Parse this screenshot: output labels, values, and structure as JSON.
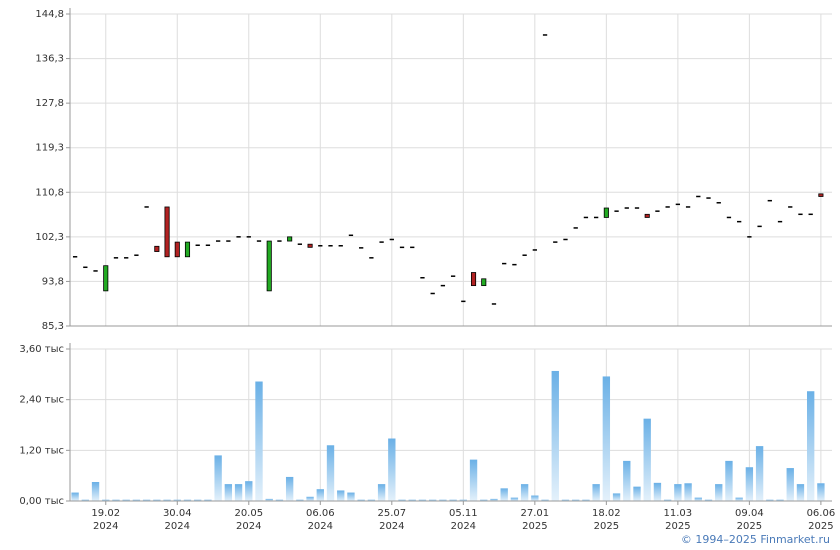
{
  "copyright": "© 1994–2025 Finmarket.ru",
  "chart_data": [
    {
      "type": "candlestick",
      "y_ticks": [
        "144,8",
        "136,3",
        "127,8",
        "119,3",
        "110,8",
        "102,3",
        "93,8",
        "85,3"
      ],
      "y_tick_values": [
        144.8,
        136.3,
        127.8,
        119.3,
        110.8,
        102.3,
        93.8,
        85.3
      ],
      "ylim": [
        85.3,
        144.8
      ],
      "grid": true,
      "colors": {
        "up": "#22aa22",
        "down": "#b22222",
        "flat": "#000000"
      },
      "candles": [
        {
          "open": 98.5,
          "close": 98.5
        },
        {
          "open": 96.5,
          "close": 96.5
        },
        {
          "open": 95.8,
          "close": 95.8
        },
        {
          "open": 92.0,
          "close": 96.8
        },
        {
          "open": 98.3,
          "close": 98.3
        },
        {
          "open": 98.3,
          "close": 98.3
        },
        {
          "open": 98.8,
          "close": 98.8
        },
        {
          "open": 108.0,
          "close": 108.0
        },
        {
          "open": 100.5,
          "close": 99.5
        },
        {
          "open": 108.0,
          "close": 98.5
        },
        {
          "open": 101.3,
          "close": 98.5
        },
        {
          "open": 98.5,
          "close": 101.3
        },
        {
          "open": 100.7,
          "close": 100.7
        },
        {
          "open": 100.7,
          "close": 100.7
        },
        {
          "open": 101.5,
          "close": 101.5
        },
        {
          "open": 101.5,
          "close": 101.5
        },
        {
          "open": 102.3,
          "close": 102.3
        },
        {
          "open": 102.3,
          "close": 102.3
        },
        {
          "open": 101.5,
          "close": 101.5
        },
        {
          "open": 92.0,
          "close": 101.5
        },
        {
          "open": 101.5,
          "close": 101.5
        },
        {
          "open": 101.5,
          "close": 102.3
        },
        {
          "open": 100.9,
          "close": 100.9
        },
        {
          "open": 100.9,
          "close": 100.3
        },
        {
          "open": 100.6,
          "close": 100.6
        },
        {
          "open": 100.6,
          "close": 100.6
        },
        {
          "open": 100.6,
          "close": 100.6
        },
        {
          "open": 102.6,
          "close": 102.6
        },
        {
          "open": 100.2,
          "close": 100.2
        },
        {
          "open": 98.3,
          "close": 98.3
        },
        {
          "open": 101.3,
          "close": 101.3
        },
        {
          "open": 101.8,
          "close": 101.8
        },
        {
          "open": 100.3,
          "close": 100.3
        },
        {
          "open": 100.3,
          "close": 100.3
        },
        {
          "open": 94.5,
          "close": 94.5
        },
        {
          "open": 91.5,
          "close": 91.5
        },
        {
          "open": 93.0,
          "close": 93.0
        },
        {
          "open": 94.8,
          "close": 94.8
        },
        {
          "open": 90.0,
          "close": 90.0
        },
        {
          "open": 95.5,
          "close": 93.0
        },
        {
          "open": 93.0,
          "close": 94.3
        },
        {
          "open": 89.5,
          "close": 89.5
        },
        {
          "open": 97.2,
          "close": 97.2
        },
        {
          "open": 97.0,
          "close": 97.0
        },
        {
          "open": 98.8,
          "close": 98.8
        },
        {
          "open": 99.8,
          "close": 99.8
        },
        {
          "open": 140.8,
          "close": 140.8
        },
        {
          "open": 101.3,
          "close": 101.3
        },
        {
          "open": 101.8,
          "close": 101.8
        },
        {
          "open": 104.0,
          "close": 104.0
        },
        {
          "open": 106.0,
          "close": 106.0
        },
        {
          "open": 106.0,
          "close": 106.0
        },
        {
          "open": 106.0,
          "close": 107.8
        },
        {
          "open": 107.2,
          "close": 107.2
        },
        {
          "open": 107.8,
          "close": 107.8
        },
        {
          "open": 107.8,
          "close": 107.8
        },
        {
          "open": 106.6,
          "close": 106.0
        },
        {
          "open": 107.2,
          "close": 107.2
        },
        {
          "open": 108.0,
          "close": 108.0
        },
        {
          "open": 108.5,
          "close": 108.5
        },
        {
          "open": 108.2,
          "close": 108.0
        },
        {
          "open": 110.0,
          "close": 110.0
        },
        {
          "open": 109.7,
          "close": 109.7
        },
        {
          "open": 108.8,
          "close": 108.8
        },
        {
          "open": 106.0,
          "close": 106.0
        },
        {
          "open": 105.2,
          "close": 105.2
        },
        {
          "open": 102.3,
          "close": 102.3
        },
        {
          "open": 104.3,
          "close": 104.3
        },
        {
          "open": 109.2,
          "close": 109.2
        },
        {
          "open": 105.2,
          "close": 105.2
        },
        {
          "open": 108.0,
          "close": 108.0
        },
        {
          "open": 106.6,
          "close": 106.6
        },
        {
          "open": 106.6,
          "close": 106.6
        },
        {
          "open": 110.5,
          "close": 110.0
        }
      ]
    },
    {
      "type": "bar",
      "y_ticks": [
        "3,60 тыс",
        "2,40 тыс",
        "1,20 тыс",
        "0,00 тыс"
      ],
      "y_tick_values": [
        3600,
        2400,
        1200,
        0
      ],
      "ylim": [
        0,
        3600
      ],
      "grid": true,
      "x_ticks": [
        {
          "index": 3,
          "date": "19.02",
          "year": "2024"
        },
        {
          "index": 10,
          "date": "30.04",
          "year": "2024"
        },
        {
          "index": 17,
          "date": "20.05",
          "year": "2024"
        },
        {
          "index": 24,
          "date": "06.06",
          "year": "2024"
        },
        {
          "index": 31,
          "date": "25.07",
          "year": "2024"
        },
        {
          "index": 38,
          "date": "05.11",
          "year": "2024"
        },
        {
          "index": 45,
          "date": "27.01",
          "year": "2025"
        },
        {
          "index": 52,
          "date": "18.02",
          "year": "2025"
        },
        {
          "index": 59,
          "date": "11.03",
          "year": "2025"
        },
        {
          "index": 66,
          "date": "09.04",
          "year": "2025"
        },
        {
          "index": 73,
          "date": "06.06",
          "year": "2025"
        }
      ],
      "bar_colors": [
        "#6ab0e6",
        "#e4f1fb"
      ],
      "values": [
        200,
        30,
        450,
        30,
        30,
        30,
        30,
        30,
        30,
        30,
        30,
        30,
        30,
        30,
        1080,
        400,
        400,
        470,
        2830,
        50,
        30,
        570,
        30,
        100,
        280,
        1320,
        250,
        200,
        30,
        30,
        400,
        1480,
        30,
        30,
        30,
        30,
        30,
        30,
        30,
        980,
        30,
        50,
        300,
        80,
        400,
        130,
        30,
        3080,
        30,
        30,
        30,
        400,
        2950,
        180,
        950,
        340,
        1950,
        430,
        30,
        400,
        420,
        80,
        30,
        400,
        950,
        80,
        800,
        1300,
        30,
        30,
        780,
        400,
        2600,
        420
      ]
    }
  ]
}
